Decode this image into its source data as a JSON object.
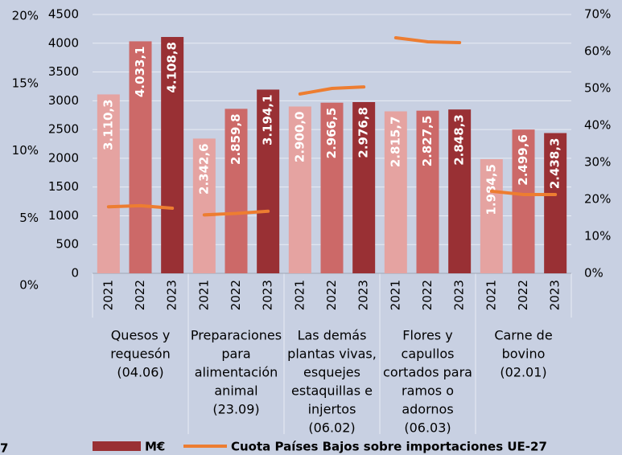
{
  "chart_data": {
    "type": "bar",
    "groups": [
      [
        "Quesos y",
        "requesón",
        "(04.06)"
      ],
      [
        "Preparaciones",
        "para",
        "alimentación",
        "animal",
        "(23.09)"
      ],
      [
        "Las demás",
        "plantas vivas,",
        "esquejes",
        "estaquillas e",
        "injertos",
        "(06.02)"
      ],
      [
        "Flores y",
        "capullos",
        "cortados para",
        "ramos o",
        "adornos",
        "(06.03)"
      ],
      [
        "Carne de",
        "bovino",
        "(02.01)"
      ]
    ],
    "series": [
      {
        "name": "2021",
        "color": "#e5a3a1",
        "values": [
          3110.3,
          2342.6,
          2900.0,
          2815.7,
          1984.5
        ],
        "value_labels": [
          "3.110,3",
          "2.342,6",
          "2.900,0",
          "2.815,7",
          "1.984,5"
        ]
      },
      {
        "name": "2022",
        "color": "#cc6968",
        "values": [
          4033.1,
          2859.8,
          2966.5,
          2827.5,
          2499.6
        ],
        "value_labels": [
          "4.033,1",
          "2.859,8",
          "2.966,5",
          "2.827,5",
          "2.499,6"
        ]
      },
      {
        "name": "2023",
        "color": "#993034",
        "values": [
          4108.8,
          3194.1,
          2976.8,
          2848.3,
          2438.3
        ],
        "value_labels": [
          "4.108,8",
          "3.194,1",
          "2.976,8",
          "2.848,3",
          "2.438,3"
        ]
      }
    ],
    "bar_legend": "M€",
    "line_series": {
      "name": "Cuota Países Bajos sobre importaciones UE-27",
      "color": "#ed7d31",
      "axis": "y2",
      "values": [
        [
          18.0,
          18.3,
          17.6
        ],
        [
          15.8,
          16.2,
          16.8
        ],
        [
          48.5,
          50.0,
          50.4
        ],
        [
          63.7,
          62.6,
          62.4
        ],
        [
          22.2,
          21.3,
          21.3
        ]
      ]
    },
    "ylim": [
      0,
      4500
    ],
    "yticks": [
      0,
      500,
      1000,
      1500,
      2000,
      2500,
      3000,
      3500,
      4000,
      4500
    ],
    "y2lim": [
      0,
      70
    ],
    "y2ticks": [
      {
        "value": 0,
        "label": "0%"
      },
      {
        "value": 10,
        "label": "10%"
      },
      {
        "value": 20,
        "label": "20%"
      },
      {
        "value": 30,
        "label": "30%"
      },
      {
        "value": 40,
        "label": "40%"
      },
      {
        "value": 50,
        "label": "50%"
      },
      {
        "value": 60,
        "label": "60%"
      },
      {
        "value": 70,
        "label": "70%"
      }
    ],
    "y3lim": [
      0,
      20
    ],
    "y3ticks": [
      {
        "value": 0,
        "label": "0%"
      },
      {
        "value": 5,
        "label": "5%"
      },
      {
        "value": 10,
        "label": "10%"
      },
      {
        "value": 15,
        "label": "15%"
      },
      {
        "value": 20,
        "label": "20%"
      }
    ],
    "grid": true
  },
  "page_number": "7"
}
